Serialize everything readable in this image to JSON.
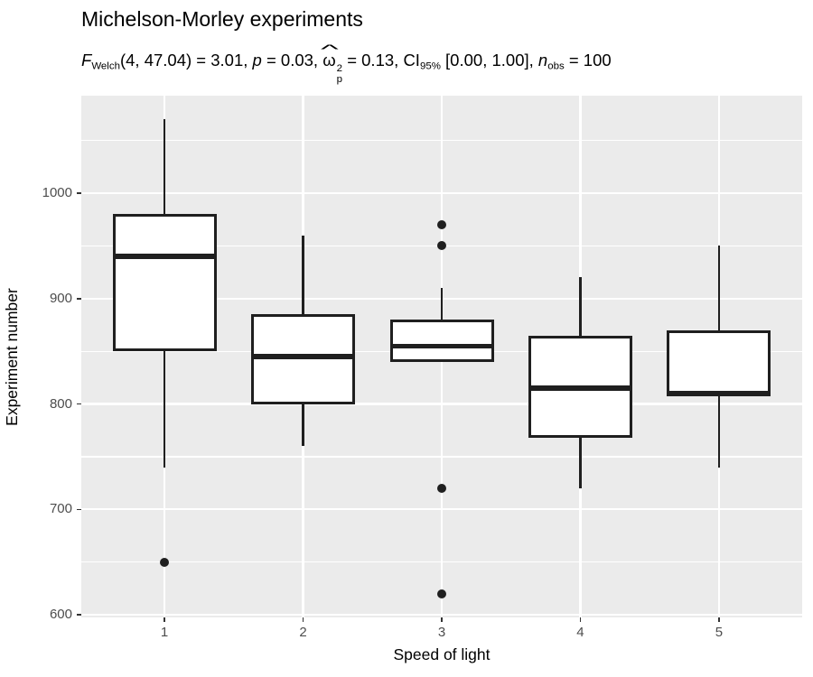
{
  "subtitle_parts": {
    "f": "F",
    "f_sub": "Welch",
    "f_rest": "(4, 47.04) = 3.01, ",
    "p": "p",
    "p_rest": " = 0.03, ",
    "omega": "ω",
    "omega_hat": "^",
    "omega_sup": "2",
    "omega_sub": "p",
    "omega_rest": " = 0.13, ",
    "ci": "CI",
    "ci_sub": "95%",
    "ci_rest": " [0.00, 1.00], ",
    "n": "n",
    "n_sub": "obs",
    "n_rest": " = 100"
  },
  "chart_data": {
    "type": "boxplot",
    "title": "Michelson-Morley experiments",
    "subtitle_text": "F_Welch(4, 47.04) = 3.01, p = 0.03, ω̂²_p = 0.13, CI_95% [0.00, 1.00], n_obs = 100",
    "xlabel": "Speed of light",
    "ylabel": "Experiment number",
    "categories": [
      "1",
      "2",
      "3",
      "4",
      "5"
    ],
    "ylim": [
      597.5,
      1092.5
    ],
    "y_major_ticks": [
      600,
      700,
      800,
      900,
      1000
    ],
    "y_minor_ticks": [
      650,
      750,
      850,
      950,
      1050
    ],
    "grid": true,
    "legend": "none",
    "boxes": [
      {
        "category": "1",
        "whisker_low": 740,
        "q1": 850,
        "median": 940,
        "q3": 980,
        "whisker_high": 1070,
        "outliers": [
          650
        ]
      },
      {
        "category": "2",
        "whisker_low": 760,
        "q1": 800,
        "median": 845,
        "q3": 885,
        "whisker_high": 960,
        "outliers": []
      },
      {
        "category": "3",
        "whisker_low": 840,
        "q1": 840,
        "median": 855,
        "q3": 880,
        "whisker_high": 910,
        "outliers": [
          620,
          720,
          950,
          970
        ]
      },
      {
        "category": "4",
        "whisker_low": 720,
        "q1": 767.5,
        "median": 815,
        "q3": 865,
        "whisker_high": 920,
        "outliers": []
      },
      {
        "category": "5",
        "whisker_low": 740,
        "q1": 807.5,
        "median": 810,
        "q3": 870,
        "whisker_high": 950,
        "outliers": []
      }
    ],
    "colors": {
      "panel_bg": "#EBEBEB",
      "grid": "#FFFFFF",
      "box_fill": "#FFFFFF",
      "box_stroke": "#1F1F1F",
      "outlier": "#1F1F1F",
      "axis_text": "#4D4D4D",
      "title_text": "#000000"
    }
  }
}
